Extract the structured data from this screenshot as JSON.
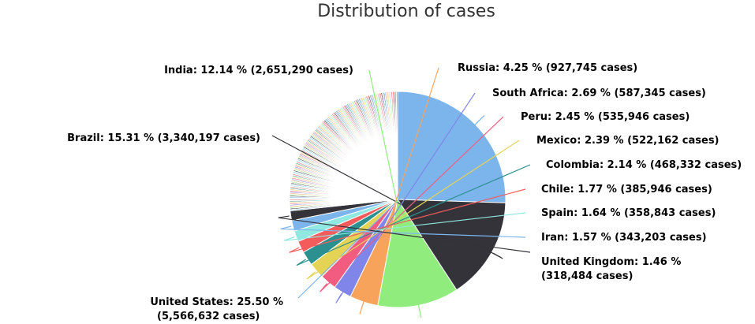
{
  "chart_data": {
    "type": "pie",
    "title": "Distribution of cases",
    "start_angle_deg": 0,
    "direction": "clockwise",
    "slices": [
      {
        "name": "United States",
        "percent": 25.5,
        "cases": 5566632,
        "label_line1": "United States: 25.50 %",
        "label_line2": "(5,566,632 cases)",
        "color": "#7cb5ec"
      },
      {
        "name": "Brazil",
        "percent": 15.31,
        "cases": 3340197,
        "label_line1": "Brazil: 15.31 % (3,340,197 cases)",
        "label_line2": "",
        "color": "#333339"
      },
      {
        "name": "India",
        "percent": 12.14,
        "cases": 2651290,
        "label_line1": "India: 12.14 % (2,651,290 cases)",
        "label_line2": "",
        "color": "#90ed7d"
      },
      {
        "name": "Russia",
        "percent": 4.25,
        "cases": 927745,
        "label_line1": "Russia: 4.25 % (927,745 cases)",
        "label_line2": "",
        "color": "#f7a35c"
      },
      {
        "name": "South Africa",
        "percent": 2.69,
        "cases": 587345,
        "label_line1": "South Africa: 2.69 % (587,345 cases)",
        "label_line2": "",
        "color": "#8085e9"
      },
      {
        "name": "Peru",
        "percent": 2.45,
        "cases": 535946,
        "label_line1": "Peru: 2.45 % (535,946 cases)",
        "label_line2": "",
        "color": "#f15c80"
      },
      {
        "name": "Mexico",
        "percent": 2.39,
        "cases": 522162,
        "label_line1": "Mexico: 2.39 % (522,162 cases)",
        "label_line2": "",
        "color": "#e4d354"
      },
      {
        "name": "Colombia",
        "percent": 2.14,
        "cases": 468332,
        "label_line1": "Colombia: 2.14 % (468,332 cases)",
        "label_line2": "",
        "color": "#2b908f"
      },
      {
        "name": "Chile",
        "percent": 1.77,
        "cases": 385946,
        "label_line1": "Chile: 1.77 % (385,946 cases)",
        "label_line2": "",
        "color": "#f45b5b"
      },
      {
        "name": "Spain",
        "percent": 1.64,
        "cases": 358843,
        "label_line1": "Spain: 1.64 % (358,843 cases)",
        "label_line2": "",
        "color": "#91e8e1"
      },
      {
        "name": "Iran",
        "percent": 1.57,
        "cases": 343203,
        "label_line1": "Iran: 1.57 % (343,203 cases)",
        "label_line2": "",
        "color": "#7cb5ec"
      },
      {
        "name": "United Kingdom",
        "percent": 1.46,
        "cases": 318484,
        "label_line1": "United Kingdom: 1.46 %",
        "label_line2": "(318,484 cases)",
        "color": "#333339"
      }
    ],
    "remaining_percent": 26.69,
    "palette": [
      "#7cb5ec",
      "#333339",
      "#90ed7d",
      "#f7a35c",
      "#8085e9",
      "#f15c80",
      "#e4d354",
      "#2b908f",
      "#f45b5b",
      "#91e8e1"
    ]
  }
}
